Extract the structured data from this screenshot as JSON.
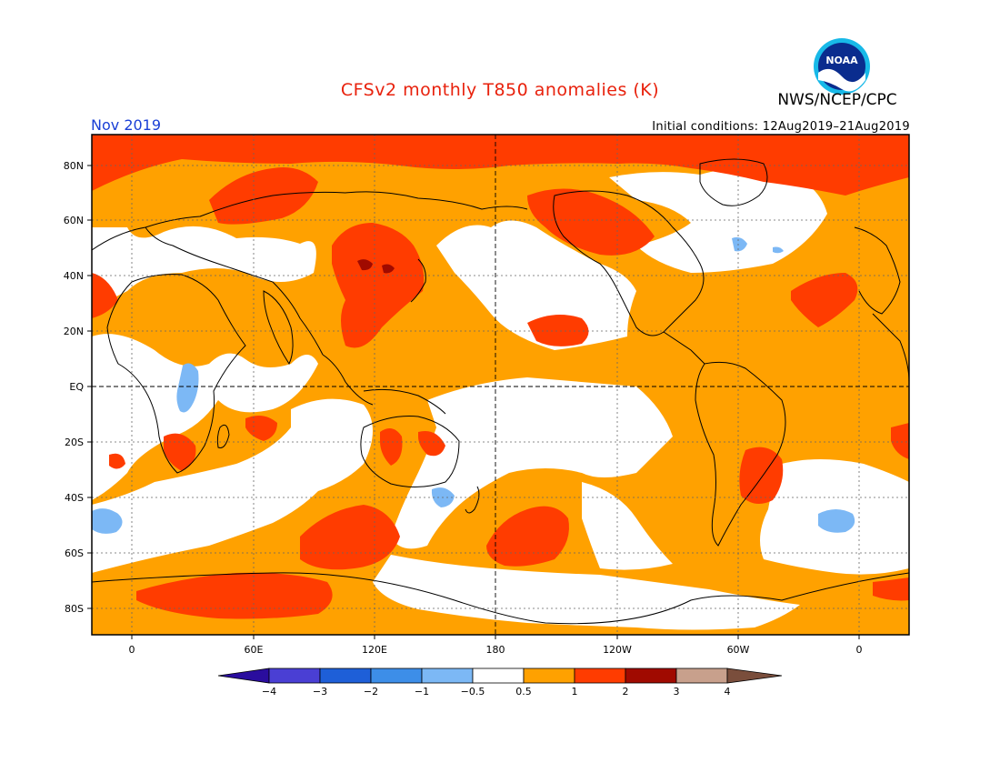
{
  "header": {
    "title": "CFSv2 monthly T850 anomalies (K)",
    "agency": "NWS/NCEP/CPC",
    "logo_text": "NOAA",
    "month": "Nov 2019",
    "initial_conditions": "Initial conditions: 12Aug2019–21Aug2019"
  },
  "map": {
    "projection": "equirectangular",
    "lon_range": [
      -20,
      380
    ],
    "lat_range": [
      -90,
      90
    ],
    "lat_ticks": [
      "80N",
      "60N",
      "40N",
      "20N",
      "EQ",
      "20S",
      "40S",
      "60S",
      "80S"
    ],
    "lon_ticks": [
      "0",
      "60E",
      "120E",
      "180",
      "120W",
      "60W",
      "0"
    ],
    "colors": {
      "coastline": "#000000",
      "grid": "#666666",
      "anom_0_5_to_1": "#ffa100",
      "anom_1_to_2": "#ff3c00",
      "anom_2_to_3": "#a00a00",
      "anom_neg_0_5_to_neg_1": "#7cb8f5"
    }
  },
  "colorbar": {
    "labels": [
      "−4",
      "−3",
      "−2",
      "−1",
      "−0.5",
      "0.5",
      "1",
      "2",
      "3",
      "4"
    ],
    "colors": [
      "#2a0d9e",
      "#4a3fd4",
      "#1e5fd8",
      "#3d8ee8",
      "#7cb8f5",
      "#ffffff",
      "#ffa100",
      "#ff3c00",
      "#a00a00",
      "#c8a08c",
      "#7a4e3c"
    ]
  }
}
